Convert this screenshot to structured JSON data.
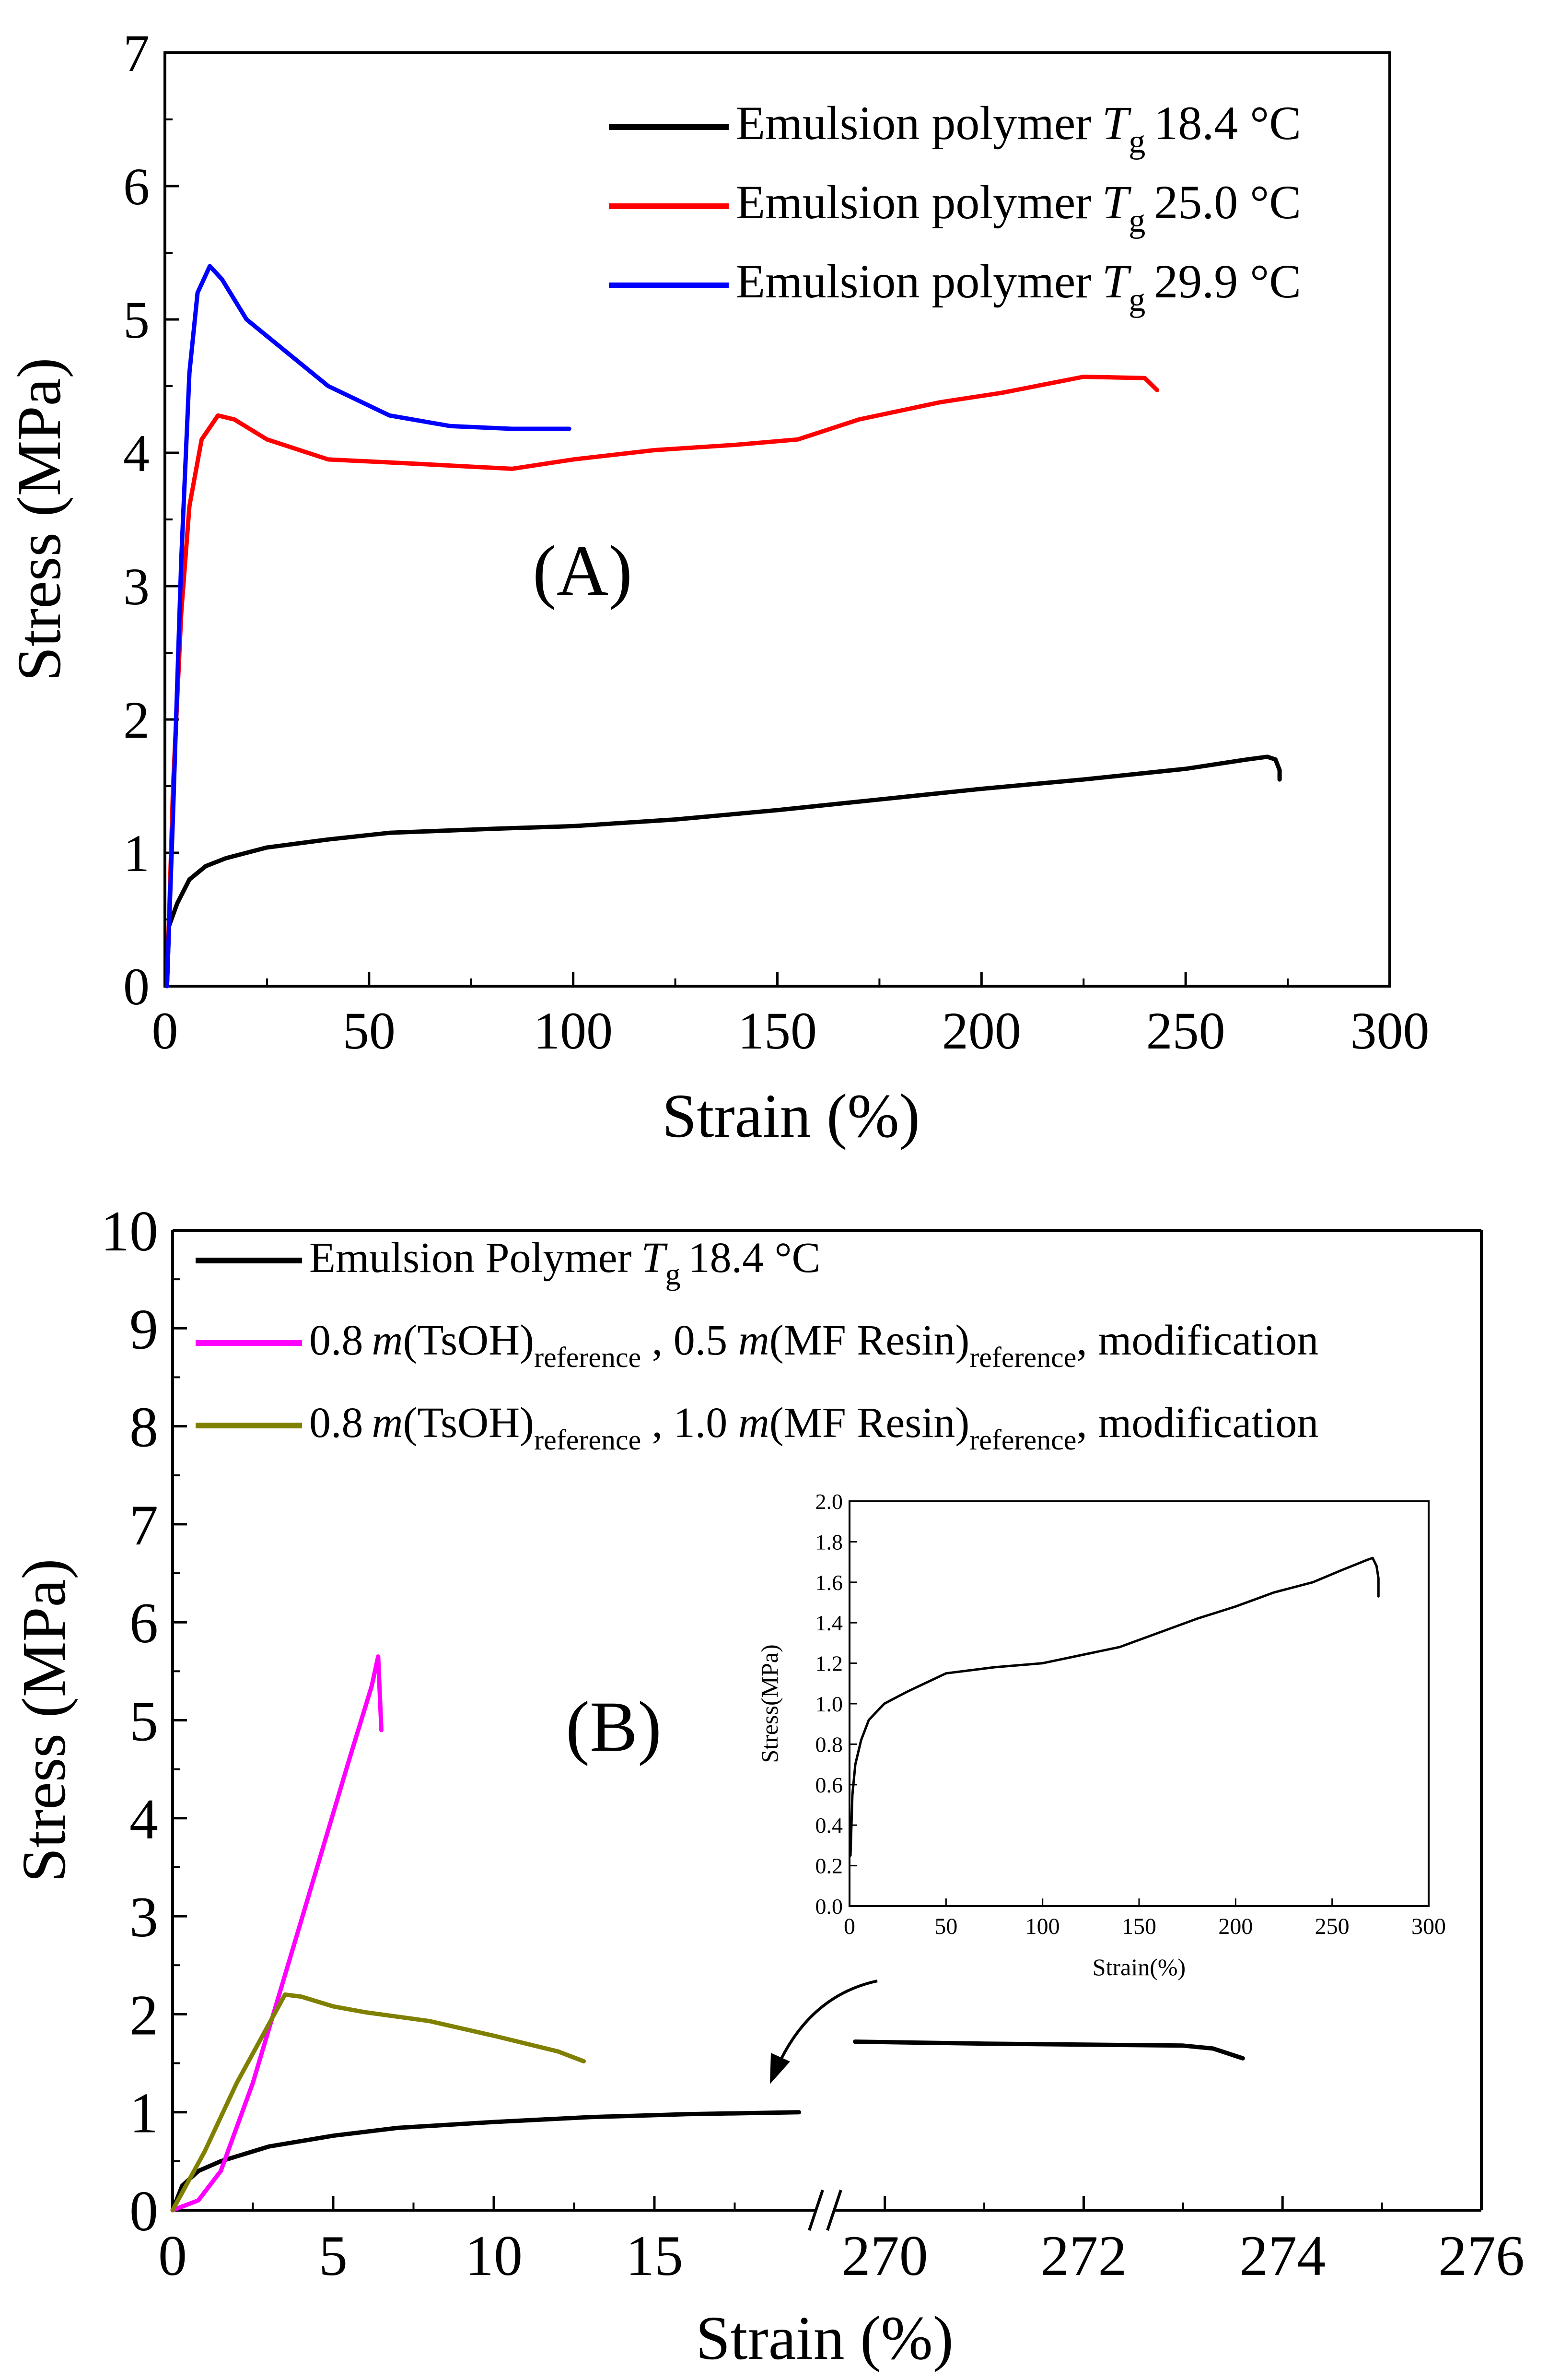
{
  "chart_data": [
    {
      "id": "A",
      "type": "line",
      "panel_label": "(A)",
      "xlabel": "Strain (%)",
      "ylabel": "Stress (MPa)",
      "xlim": [
        0,
        300
      ],
      "ylim": [
        0,
        7
      ],
      "xticks": [
        0,
        50,
        100,
        150,
        200,
        250,
        300
      ],
      "yticks": [
        0,
        1,
        2,
        3,
        4,
        5,
        6,
        7
      ],
      "legend_position": "top-right",
      "series": [
        {
          "name": "Emulsion  polymer",
          "tg": "18.4 °C",
          "color": "#000000",
          "points": [
            [
              0.5,
              0
            ],
            [
              1,
              0.45
            ],
            [
              3,
              0.62
            ],
            [
              6,
              0.8
            ],
            [
              10,
              0.9
            ],
            [
              15,
              0.96
            ],
            [
              25,
              1.04
            ],
            [
              40,
              1.1
            ],
            [
              55,
              1.15
            ],
            [
              80,
              1.18
            ],
            [
              100,
              1.2
            ],
            [
              125,
              1.25
            ],
            [
              150,
              1.32
            ],
            [
              175,
              1.4
            ],
            [
              200,
              1.48
            ],
            [
              225,
              1.55
            ],
            [
              250,
              1.63
            ],
            [
              265,
              1.7
            ],
            [
              270,
              1.72
            ],
            [
              272,
              1.7
            ],
            [
              273,
              1.62
            ],
            [
              273,
              1.55
            ]
          ]
        },
        {
          "name": "Emulsion  polymer",
          "tg": "25.0 °C",
          "color": "#ff0000",
          "points": [
            [
              0.5,
              0
            ],
            [
              2,
              1.5
            ],
            [
              4,
              2.8
            ],
            [
              6,
              3.6
            ],
            [
              9,
              4.1
            ],
            [
              13,
              4.28
            ],
            [
              17,
              4.25
            ],
            [
              25,
              4.1
            ],
            [
              40,
              3.95
            ],
            [
              60,
              3.92
            ],
            [
              85,
              3.88
            ],
            [
              100,
              3.95
            ],
            [
              120,
              4.02
            ],
            [
              140,
              4.06
            ],
            [
              155,
              4.1
            ],
            [
              170,
              4.25
            ],
            [
              190,
              4.38
            ],
            [
              205,
              4.45
            ],
            [
              225,
              4.57
            ],
            [
              240,
              4.56
            ],
            [
              243,
              4.47
            ]
          ]
        },
        {
          "name": "Emulsion  polymer",
          "tg": "29.9 °C",
          "color": "#0000ff",
          "points": [
            [
              0.5,
              0
            ],
            [
              2,
              1.3
            ],
            [
              4,
              3.2
            ],
            [
              6,
              4.6
            ],
            [
              8,
              5.2
            ],
            [
              11,
              5.4
            ],
            [
              14,
              5.3
            ],
            [
              20,
              5.0
            ],
            [
              30,
              4.75
            ],
            [
              40,
              4.5
            ],
            [
              55,
              4.28
            ],
            [
              70,
              4.2
            ],
            [
              85,
              4.18
            ],
            [
              99,
              4.18
            ]
          ]
        }
      ]
    },
    {
      "id": "B",
      "type": "line",
      "panel_label": "(B)",
      "xlabel": "Strain (%)",
      "ylabel": "Stress (MPa)",
      "x_axis_break": true,
      "xlim_left": [
        0,
        20
      ],
      "xlim_right": [
        269.5,
        276
      ],
      "ylim": [
        0,
        10
      ],
      "xticks_left": [
        0,
        5,
        10,
        15
      ],
      "xticks_right": [
        270,
        272,
        274,
        276
      ],
      "yticks": [
        0,
        1,
        2,
        3,
        4,
        5,
        6,
        7,
        8,
        9,
        10
      ],
      "legend_position": "top-left",
      "series": [
        {
          "name": "Emulsion Polymer",
          "tg": "18.4 °C",
          "color": "#000000",
          "points_left": [
            [
              0,
              0
            ],
            [
              0.3,
              0.25
            ],
            [
              0.8,
              0.4
            ],
            [
              1.5,
              0.5
            ],
            [
              3,
              0.65
            ],
            [
              5,
              0.76
            ],
            [
              7,
              0.84
            ],
            [
              10,
              0.9
            ],
            [
              13,
              0.95
            ],
            [
              16,
              0.98
            ],
            [
              19.5,
              1.0
            ]
          ],
          "points_right": [
            [
              269.7,
              1.72
            ],
            [
              271,
              1.7
            ],
            [
              272,
              1.69
            ],
            [
              273,
              1.68
            ],
            [
              273.3,
              1.65
            ],
            [
              273.6,
              1.55
            ]
          ]
        },
        {
          "name_prefix": "0.8",
          "name_parts": [
            "m",
            "(TsOH)",
            "reference",
            " , 0.5 ",
            "m",
            "(MF Resin)",
            "reference",
            ", modification"
          ],
          "color": "#ff00ff",
          "points_left": [
            [
              0,
              0
            ],
            [
              0.8,
              0.1
            ],
            [
              1.5,
              0.4
            ],
            [
              2.5,
              1.3
            ],
            [
              3.5,
              2.4
            ],
            [
              4.5,
              3.5
            ],
            [
              5.5,
              4.6
            ],
            [
              6.2,
              5.35
            ],
            [
              6.4,
              5.65
            ],
            [
              6.5,
              4.9
            ]
          ]
        },
        {
          "name_prefix": "0.8",
          "name_parts": [
            "m",
            "(TsOH)",
            "reference",
            " , 1.0 ",
            "m",
            "(MF Resin)",
            "reference",
            ", modification"
          ],
          "color": "#808000",
          "points_left": [
            [
              0,
              0
            ],
            [
              0.5,
              0.3
            ],
            [
              1,
              0.6
            ],
            [
              2,
              1.3
            ],
            [
              3,
              1.9
            ],
            [
              3.5,
              2.2
            ],
            [
              4,
              2.18
            ],
            [
              5,
              2.08
            ],
            [
              6,
              2.02
            ],
            [
              8,
              1.93
            ],
            [
              10,
              1.78
            ],
            [
              12,
              1.62
            ],
            [
              12.8,
              1.52
            ]
          ]
        }
      ],
      "inset": {
        "type": "line",
        "xlabel": "Strain(%)",
        "ylabel": "Stress(MPa)",
        "xlim": [
          0,
          300
        ],
        "ylim": [
          0,
          2.0
        ],
        "xticks": [
          0,
          50,
          100,
          150,
          200,
          250,
          300
        ],
        "yticks": [
          0.0,
          0.2,
          0.4,
          0.6,
          0.8,
          1.0,
          1.2,
          1.4,
          1.6,
          1.8,
          2.0
        ],
        "ytick_labels": [
          "0.0",
          "0.2",
          "0.4",
          "0.6",
          "0.8",
          "1.0",
          "1.2",
          "1.4",
          "1.6",
          "1.8",
          "2.0"
        ],
        "series": [
          {
            "name": "Emulsion Polymer 18.4 °C",
            "color": "#000000",
            "points": [
              [
                0.5,
                0.25
              ],
              [
                1.5,
                0.55
              ],
              [
                3,
                0.7
              ],
              [
                6,
                0.82
              ],
              [
                10,
                0.92
              ],
              [
                18,
                1.0
              ],
              [
                30,
                1.06
              ],
              [
                50,
                1.15
              ],
              [
                75,
                1.18
              ],
              [
                100,
                1.2
              ],
              [
                125,
                1.25
              ],
              [
                140,
                1.28
              ],
              [
                160,
                1.35
              ],
              [
                180,
                1.42
              ],
              [
                200,
                1.48
              ],
              [
                220,
                1.55
              ],
              [
                240,
                1.6
              ],
              [
                255,
                1.66
              ],
              [
                268,
                1.71
              ],
              [
                271,
                1.72
              ],
              [
                273,
                1.68
              ],
              [
                274,
                1.62
              ],
              [
                274,
                1.53
              ]
            ]
          }
        ]
      }
    }
  ]
}
